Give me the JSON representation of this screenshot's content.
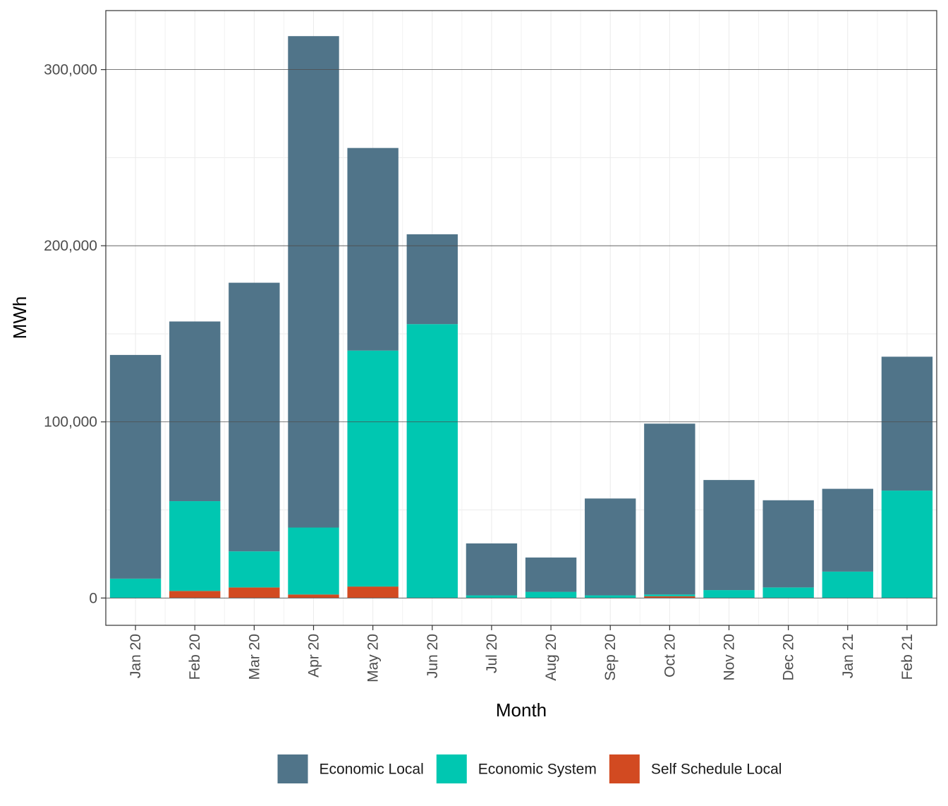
{
  "chart_data": {
    "type": "bar",
    "stacked": true,
    "xlabel": "Month",
    "ylabel": "MWh",
    "categories": [
      "Jan 20",
      "Feb 20",
      "Mar 20",
      "Apr 20",
      "May 20",
      "Jun 20",
      "Jul 20",
      "Aug 20",
      "Sep 20",
      "Oct 20",
      "Nov 20",
      "Dec 20",
      "Jan 21",
      "Feb 21"
    ],
    "yticks": [
      0,
      100000,
      200000,
      300000
    ],
    "ytick_labels": [
      "0",
      "100,000",
      "200,000",
      "300,000"
    ],
    "ylim": [
      -15500,
      333500
    ],
    "grid": true,
    "legend_position": "bottom",
    "series": [
      {
        "name": "Self Schedule Local",
        "color": "#D24A21",
        "values": [
          0,
          4000,
          6000,
          2000,
          6500,
          0,
          0,
          0,
          0,
          1000,
          0,
          0,
          0,
          0
        ]
      },
      {
        "name": "Economic System",
        "color": "#00C7B1",
        "values": [
          11000,
          51000,
          20500,
          38000,
          134000,
          155500,
          1500,
          3500,
          1500,
          1000,
          4500,
          6000,
          15000,
          61000
        ]
      },
      {
        "name": "Economic Local",
        "color": "#507489",
        "values": [
          127000,
          102000,
          152500,
          279000,
          115000,
          51000,
          29500,
          19500,
          55000,
          97000,
          62500,
          49500,
          47000,
          76000
        ]
      }
    ],
    "legend_order": [
      "Economic Local",
      "Economic System",
      "Self Schedule Local"
    ]
  }
}
